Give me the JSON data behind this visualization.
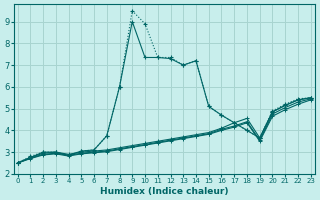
{
  "xlabel": "Humidex (Indice chaleur)",
  "background_color": "#c8eeec",
  "grid_color": "#a8d4d0",
  "line_color": "#006666",
  "xlim": [
    -0.3,
    23.3
  ],
  "ylim": [
    2.0,
    9.8
  ],
  "xtick_vals": [
    0,
    1,
    2,
    3,
    4,
    5,
    6,
    7,
    8,
    9,
    10,
    11,
    12,
    13,
    14,
    15,
    16,
    17,
    18,
    19,
    20,
    21,
    22,
    23
  ],
  "ytick_vals": [
    2,
    3,
    4,
    5,
    6,
    7,
    8,
    9
  ],
  "series": [
    {
      "linestyle": "dotted",
      "x": [
        0,
        1,
        2,
        3,
        4,
        5,
        6,
        7,
        8,
        9,
        10,
        11,
        12,
        13,
        14,
        15,
        16,
        17,
        18,
        19,
        20,
        21,
        22,
        23
      ],
      "y": [
        2.5,
        2.8,
        3.0,
        3.0,
        2.85,
        3.05,
        3.1,
        3.75,
        6.0,
        9.5,
        8.9,
        7.35,
        7.35,
        7.0,
        7.2,
        5.1,
        4.7,
        4.35,
        4.0,
        3.65,
        4.9,
        5.2,
        5.45,
        5.5
      ]
    },
    {
      "linestyle": "solid",
      "x": [
        0,
        2,
        3,
        4,
        5,
        6,
        7,
        8,
        9,
        10,
        11,
        12,
        13,
        14,
        15,
        16,
        17,
        18,
        19,
        20,
        21,
        22,
        23
      ],
      "y": [
        2.5,
        3.0,
        3.0,
        2.85,
        3.05,
        3.1,
        3.75,
        6.0,
        9.0,
        7.35,
        7.35,
        7.3,
        7.0,
        7.2,
        5.1,
        4.7,
        4.35,
        4.0,
        3.65,
        4.85,
        5.15,
        5.4,
        5.5
      ]
    },
    {
      "linestyle": "solid",
      "x": [
        0,
        1,
        2,
        3,
        4,
        5,
        6,
        7,
        8,
        9,
        10,
        11,
        12,
        13,
        14,
        15,
        16,
        17,
        18,
        19,
        20,
        21,
        22,
        23
      ],
      "y": [
        2.5,
        2.75,
        2.95,
        3.0,
        2.9,
        3.0,
        3.05,
        3.1,
        3.2,
        3.3,
        3.4,
        3.5,
        3.6,
        3.7,
        3.8,
        3.9,
        4.1,
        4.35,
        4.55,
        3.65,
        4.85,
        5.15,
        5.4,
        5.5
      ]
    },
    {
      "linestyle": "solid",
      "x": [
        0,
        1,
        2,
        3,
        4,
        5,
        6,
        7,
        8,
        9,
        10,
        11,
        12,
        13,
        14,
        15,
        16,
        17,
        18,
        19,
        20,
        21,
        22,
        23
      ],
      "y": [
        2.5,
        2.72,
        2.9,
        2.95,
        2.85,
        2.95,
        3.0,
        3.05,
        3.15,
        3.25,
        3.35,
        3.45,
        3.55,
        3.65,
        3.75,
        3.85,
        4.05,
        4.2,
        4.4,
        3.55,
        4.75,
        5.05,
        5.3,
        5.45
      ]
    },
    {
      "linestyle": "solid",
      "x": [
        0,
        1,
        2,
        3,
        4,
        5,
        6,
        7,
        8,
        9,
        10,
        11,
        12,
        13,
        14,
        15,
        16,
        17,
        18,
        19,
        20,
        21,
        22,
        23
      ],
      "y": [
        2.5,
        2.7,
        2.87,
        2.92,
        2.82,
        2.92,
        2.97,
        3.02,
        3.12,
        3.22,
        3.32,
        3.42,
        3.52,
        3.62,
        3.72,
        3.82,
        4.0,
        4.15,
        4.35,
        3.5,
        4.65,
        4.95,
        5.2,
        5.4
      ]
    }
  ]
}
